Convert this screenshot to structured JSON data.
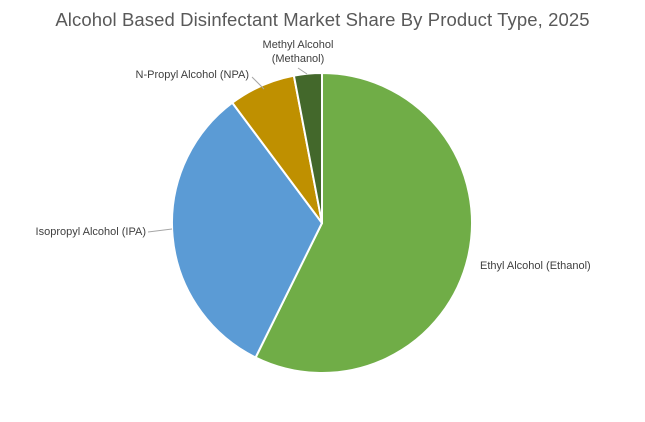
{
  "chart_data": {
    "type": "pie",
    "title": "Alcohol Based Disinfectant Market Share By Product Type, 2025",
    "legend": "none",
    "slices": [
      {
        "label": "Ethyl Alcohol (Ethanol)",
        "label_lines": [
          "Ethyl Alcohol (Ethanol)"
        ],
        "value": 57.3,
        "color": "#70AD47"
      },
      {
        "label": "Isopropyl Alcohol (IPA)",
        "label_lines": [
          "Isopropyl Alcohol (IPA)"
        ],
        "value": 32.5,
        "color": "#5B9BD5"
      },
      {
        "label": "N-Propyl Alcohol (NPA)",
        "label_lines": [
          "N-Propyl Alcohol (NPA)"
        ],
        "value": 7.2,
        "color": "#BF9000"
      },
      {
        "label": "Methyl Alcohol (Methanol)",
        "label_lines": [
          "Methyl Alcohol",
          "(Methanol)"
        ],
        "value": 3.0,
        "color": "#43682B"
      }
    ]
  }
}
